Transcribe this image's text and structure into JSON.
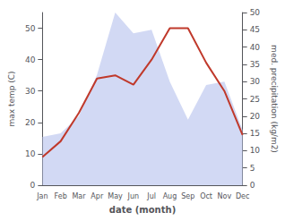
{
  "chart_data": {
    "type": "line",
    "categories": [
      "Jan",
      "Feb",
      "Mar",
      "Apr",
      "May",
      "Jun",
      "Jul",
      "Aug",
      "Sep",
      "Oct",
      "Nov",
      "Dec"
    ],
    "series": [
      {
        "type": "area",
        "axis": "y2",
        "color": "#bfc9f0",
        "values": [
          14,
          15,
          20,
          32,
          50,
          44,
          45,
          30,
          19,
          29,
          30,
          16
        ]
      },
      {
        "type": "line",
        "color": "#c0392b",
        "values": [
          9,
          14,
          23,
          34,
          35,
          32,
          40,
          50,
          50,
          39,
          30,
          16
        ]
      }
    ],
    "xlabel": "date (month)",
    "ylabel": "max temp (C)",
    "y2label": "med. precipitation (kg/m2)",
    "ylim": [
      0,
      55
    ],
    "yticks": [
      0,
      10,
      20,
      30,
      40,
      50
    ],
    "y2lim": [
      0,
      50
    ],
    "y2ticks": [
      0,
      5,
      10,
      15,
      20,
      25,
      30,
      35,
      40,
      45,
      50
    ],
    "grid": false
  }
}
